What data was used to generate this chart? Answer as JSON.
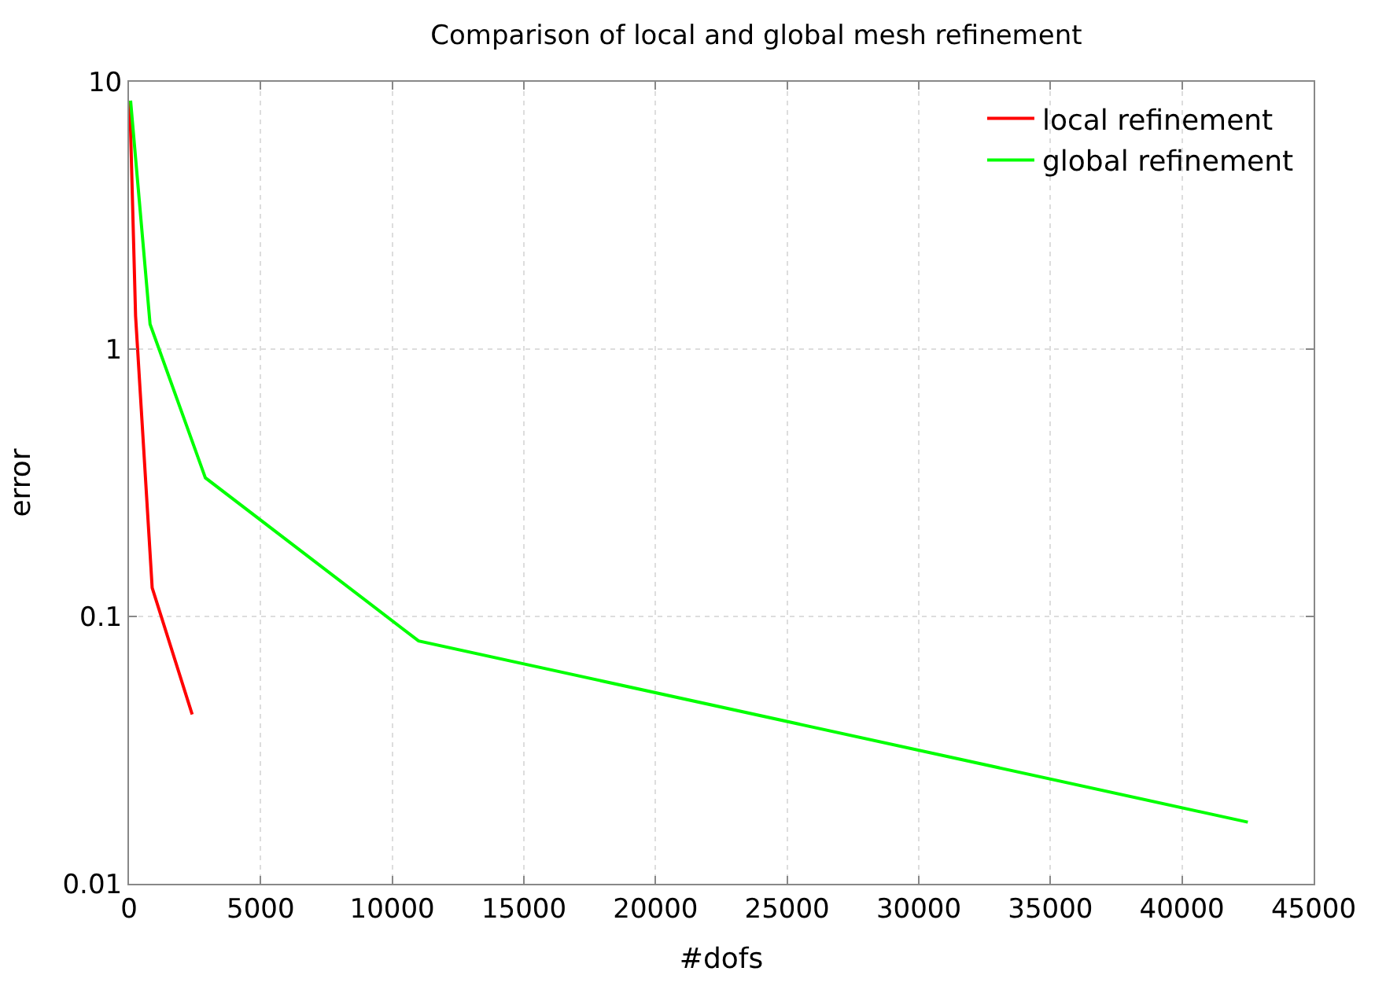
{
  "chart_data": {
    "type": "line",
    "title": "Comparison of local and global mesh refinement",
    "xlabel": "#dofs",
    "ylabel": "error",
    "series": [
      {
        "name": "local refinement",
        "color": "#ff0000",
        "x": [
          30,
          250,
          880,
          2400
        ],
        "values": [
          8.5,
          1.33,
          0.128,
          0.043
        ]
      },
      {
        "name": "global refinement",
        "color": "#00ff00",
        "x": [
          60,
          800,
          2900,
          11000,
          42500
        ],
        "values": [
          8.5,
          1.24,
          0.33,
          0.081,
          0.017
        ]
      }
    ],
    "xlim": [
      0,
      45000
    ],
    "xticks": [
      0,
      5000,
      10000,
      15000,
      20000,
      25000,
      30000,
      35000,
      40000,
      45000
    ],
    "ylim": [
      0.01,
      10
    ],
    "yticks": [
      0.01,
      0.1,
      1,
      10
    ],
    "log": "y",
    "grid": true,
    "legend": "top right",
    "marker": "none",
    "line_style": "solid"
  }
}
